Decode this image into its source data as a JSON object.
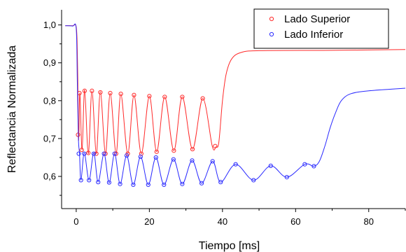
{
  "chart_data": {
    "type": "line",
    "title": "",
    "xlabel": "Tiempo  [ms]",
    "ylabel": "Reflectancia Normalizada",
    "xlim": [
      -4,
      90
    ],
    "ylim": [
      0.515,
      1.04
    ],
    "xticks": [
      0,
      20,
      40,
      60,
      80
    ],
    "xtick_labels": [
      "0",
      "20",
      "40",
      "60",
      "80"
    ],
    "yticks": [
      0.6,
      0.7,
      0.8,
      0.9,
      1.0
    ],
    "ytick_labels": [
      "0,6",
      "0,7",
      "0,8",
      "0,9",
      "1,0"
    ],
    "grid": false,
    "legend_position": "top-right",
    "marker": "open-circle",
    "series": [
      {
        "name": "Lado Superior",
        "color": "#ff2a2a",
        "line_points": [
          [
            -3,
            0.998
          ],
          [
            -1,
            0.998
          ],
          [
            0,
            0.995
          ],
          [
            0.3,
            0.93
          ],
          [
            0.5,
            0.8
          ],
          [
            0.6,
            0.7
          ],
          [
            0.75,
            0.72
          ],
          [
            1.0,
            0.82
          ],
          [
            1.6,
            0.67
          ],
          [
            2.3,
            0.828
          ],
          [
            3.3,
            0.66
          ],
          [
            4.3,
            0.826
          ],
          [
            5.5,
            0.66
          ],
          [
            6.6,
            0.824
          ],
          [
            8.0,
            0.66
          ],
          [
            9.3,
            0.82
          ],
          [
            10.9,
            0.66
          ],
          [
            12.2,
            0.818
          ],
          [
            14.1,
            0.66
          ],
          [
            15.8,
            0.815
          ],
          [
            17.8,
            0.66
          ],
          [
            20.0,
            0.812
          ],
          [
            22.0,
            0.665
          ],
          [
            24.2,
            0.81
          ],
          [
            26.7,
            0.668
          ],
          [
            29.0,
            0.81
          ],
          [
            31.8,
            0.672
          ],
          [
            34.6,
            0.806
          ],
          [
            37.2,
            0.68
          ],
          [
            38.2,
            0.678
          ],
          [
            39.0,
            0.69
          ],
          [
            40.0,
            0.8
          ],
          [
            41.0,
            0.87
          ],
          [
            42.5,
            0.91
          ],
          [
            45.0,
            0.927
          ],
          [
            50.0,
            0.932
          ],
          [
            70.0,
            0.933
          ],
          [
            90.0,
            0.935
          ]
        ],
        "markers": [
          [
            0.5,
            0.71
          ],
          [
            0.9,
            0.82
          ],
          [
            1.5,
            0.67
          ],
          [
            2.3,
            0.826
          ],
          [
            3.3,
            0.662
          ],
          [
            4.3,
            0.826
          ],
          [
            5.5,
            0.66
          ],
          [
            6.6,
            0.822
          ],
          [
            8.0,
            0.66
          ],
          [
            9.3,
            0.82
          ],
          [
            10.9,
            0.66
          ],
          [
            12.2,
            0.818
          ],
          [
            14.1,
            0.66
          ],
          [
            15.8,
            0.815
          ],
          [
            17.8,
            0.66
          ],
          [
            20.0,
            0.812
          ],
          [
            22.0,
            0.665
          ],
          [
            24.2,
            0.81
          ],
          [
            26.7,
            0.668
          ],
          [
            29.0,
            0.81
          ],
          [
            31.8,
            0.672
          ],
          [
            34.6,
            0.806
          ],
          [
            38.0,
            0.68
          ]
        ]
      },
      {
        "name": "Lado Inferior",
        "color": "#2a2aff",
        "line_points": [
          [
            -3,
            0.998
          ],
          [
            -1,
            0.997
          ],
          [
            0,
            0.99
          ],
          [
            0.3,
            0.85
          ],
          [
            0.6,
            0.7
          ],
          [
            0.9,
            0.66
          ],
          [
            1.3,
            0.59
          ],
          [
            2.2,
            0.662
          ],
          [
            3.5,
            0.59
          ],
          [
            4.8,
            0.662
          ],
          [
            6.0,
            0.585
          ],
          [
            7.6,
            0.66
          ],
          [
            9.0,
            0.583
          ],
          [
            10.5,
            0.66
          ],
          [
            12.0,
            0.58
          ],
          [
            13.8,
            0.655
          ],
          [
            15.6,
            0.578
          ],
          [
            17.6,
            0.652
          ],
          [
            19.7,
            0.578
          ],
          [
            21.8,
            0.65
          ],
          [
            24.0,
            0.578
          ],
          [
            26.6,
            0.645
          ],
          [
            29.0,
            0.58
          ],
          [
            31.7,
            0.642
          ],
          [
            34.3,
            0.582
          ],
          [
            37.3,
            0.64
          ],
          [
            39.5,
            0.585
          ],
          [
            43.6,
            0.632
          ],
          [
            48.5,
            0.59
          ],
          [
            53.2,
            0.628
          ],
          [
            57.6,
            0.598
          ],
          [
            62.5,
            0.632
          ],
          [
            65.0,
            0.627
          ],
          [
            66.5,
            0.64
          ],
          [
            68.0,
            0.68
          ],
          [
            69.5,
            0.73
          ],
          [
            71.0,
            0.77
          ],
          [
            72.5,
            0.8
          ],
          [
            75.0,
            0.818
          ],
          [
            80.0,
            0.826
          ],
          [
            90.0,
            0.833
          ]
        ],
        "markers": [
          [
            0.7,
            0.66
          ],
          [
            1.3,
            0.59
          ],
          [
            2.2,
            0.66
          ],
          [
            3.5,
            0.59
          ],
          [
            4.8,
            0.66
          ],
          [
            6.0,
            0.585
          ],
          [
            7.6,
            0.66
          ],
          [
            9.0,
            0.584
          ],
          [
            10.5,
            0.66
          ],
          [
            12.0,
            0.58
          ],
          [
            13.8,
            0.655
          ],
          [
            15.6,
            0.578
          ],
          [
            17.6,
            0.652
          ],
          [
            19.7,
            0.578
          ],
          [
            21.8,
            0.65
          ],
          [
            24.0,
            0.578
          ],
          [
            26.6,
            0.645
          ],
          [
            29.0,
            0.58
          ],
          [
            31.7,
            0.642
          ],
          [
            34.3,
            0.582
          ],
          [
            37.3,
            0.64
          ],
          [
            39.5,
            0.585
          ],
          [
            43.6,
            0.632
          ],
          [
            48.5,
            0.59
          ],
          [
            53.2,
            0.628
          ],
          [
            57.6,
            0.598
          ],
          [
            62.5,
            0.632
          ],
          [
            65.0,
            0.627
          ]
        ]
      }
    ]
  }
}
